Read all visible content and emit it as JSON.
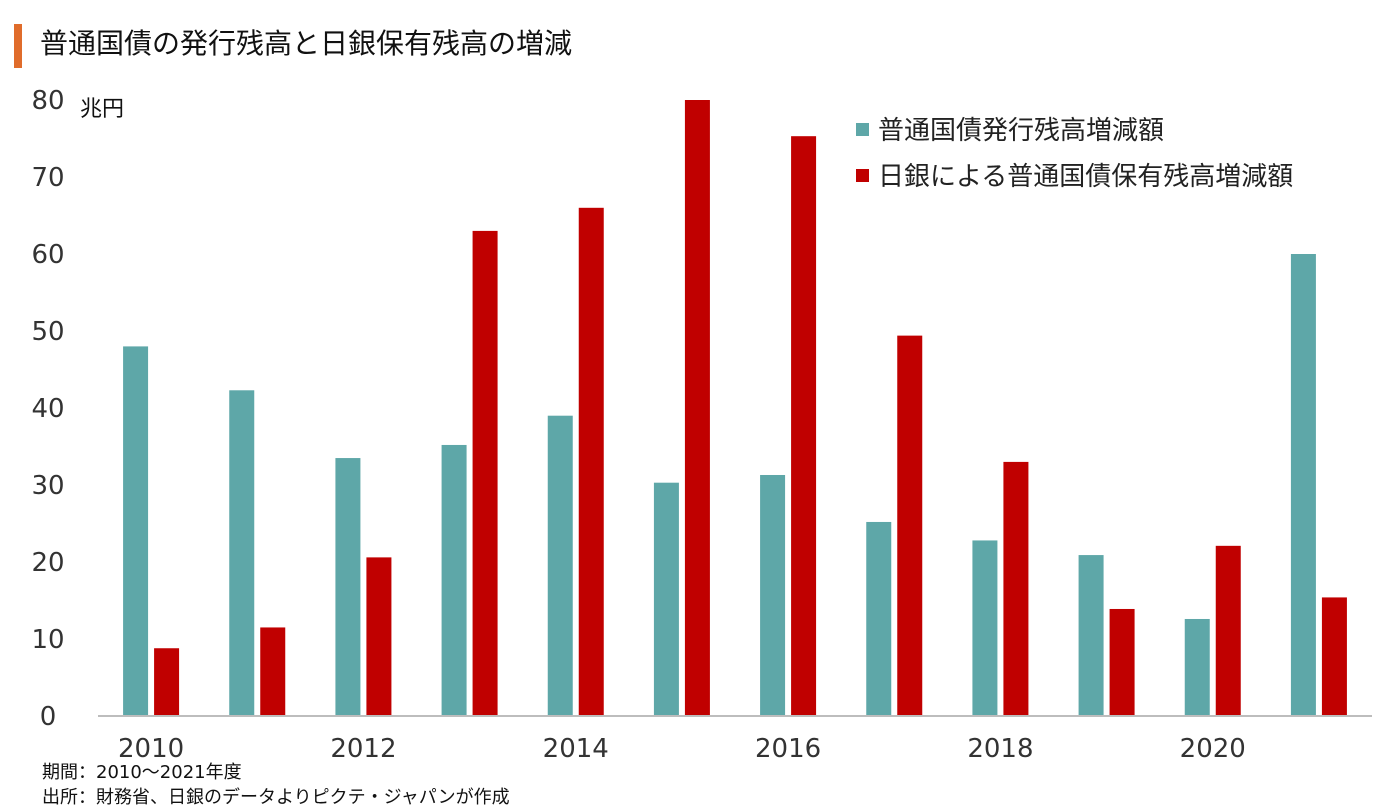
{
  "title": "普通国債の発行残高と日銀保有残高の増減",
  "notes": {
    "period": "期間：2010～2021年度",
    "source": "出所：財務省、日銀のデータよりピクテ・ジャパンが作成"
  },
  "chart_data": {
    "type": "bar",
    "unit": "兆円",
    "x": [
      2010,
      2011,
      2012,
      2013,
      2014,
      2015,
      2016,
      2017,
      2018,
      2019,
      2020,
      2021
    ],
    "x_tick_labels": [
      "2010",
      "2012",
      "2014",
      "2016",
      "2018",
      "2020"
    ],
    "y_ticks": [
      0,
      10,
      20,
      30,
      40,
      50,
      60,
      70,
      80
    ],
    "ylim": [
      0,
      80
    ],
    "grid": false,
    "legend_position": "top-right",
    "series": [
      {
        "name": "普通国債発行残高増減額",
        "color": "#5ea7a8",
        "values": [
          48,
          42.3,
          33.5,
          35.2,
          39,
          30.3,
          31.3,
          25.2,
          22.8,
          20.9,
          12.6,
          60
        ]
      },
      {
        "name": "日銀による普通国債保有残高増減額",
        "color": "#c00000",
        "values": [
          8.8,
          11.5,
          20.6,
          63,
          66,
          80,
          75.3,
          49.4,
          33,
          13.9,
          22.1,
          15.4
        ]
      }
    ]
  }
}
